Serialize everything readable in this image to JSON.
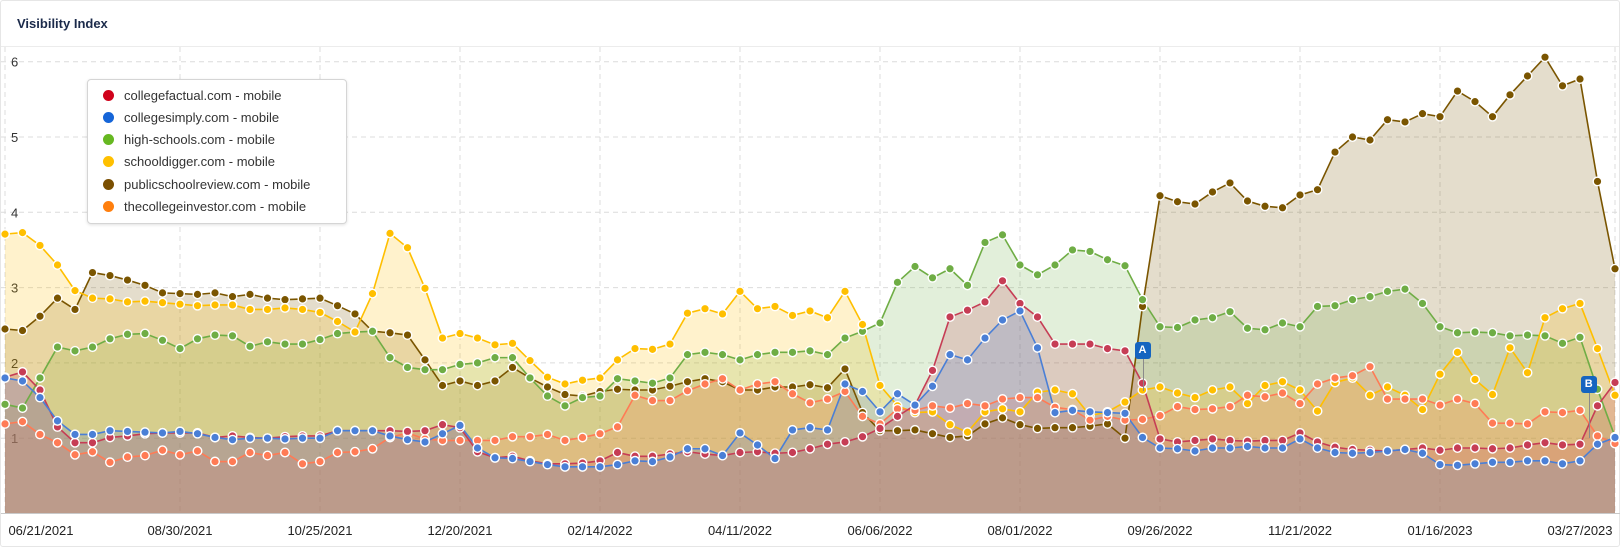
{
  "header": {
    "title": "Visibility Index"
  },
  "chart_data": {
    "type": "area",
    "title": "Visibility Index",
    "xlabel": "",
    "ylabel": "",
    "ylim": [
      0,
      6.3
    ],
    "y_ticks": [
      "1",
      "2",
      "3",
      "4",
      "5",
      "6"
    ],
    "x_start": "06/21/2021",
    "x_interval": "weekly",
    "x_ticks": [
      {
        "label": "06/21/2021",
        "index": 0
      },
      {
        "label": "08/30/2021",
        "index": 10
      },
      {
        "label": "10/25/2021",
        "index": 18
      },
      {
        "label": "12/20/2021",
        "index": 26
      },
      {
        "label": "02/14/2022",
        "index": 34
      },
      {
        "label": "04/11/2022",
        "index": 42
      },
      {
        "label": "06/06/2022",
        "index": 50
      },
      {
        "label": "08/01/2022",
        "index": 58
      },
      {
        "label": "09/26/2022",
        "index": 66
      },
      {
        "label": "11/21/2022",
        "index": 74
      },
      {
        "label": "01/16/2023",
        "index": 82
      },
      {
        "label": "03/27/2023",
        "index": 92
      }
    ],
    "grid": true,
    "legend_position": "top-left",
    "annotations": [
      {
        "label": "A",
        "index": 65
      },
      {
        "label": "B",
        "index": 90.5
      }
    ],
    "series": [
      {
        "name": "publicschoolreview.com - mobile",
        "color": "#7a5500",
        "legend_color": "#7a4f01",
        "values": [
          2.45,
          2.43,
          2.62,
          2.86,
          2.71,
          3.2,
          3.16,
          3.1,
          3.03,
          2.93,
          2.92,
          2.91,
          2.93,
          2.88,
          2.91,
          2.86,
          2.84,
          2.85,
          2.86,
          2.76,
          2.65,
          2.42,
          2.4,
          2.37,
          2.04,
          1.7,
          1.76,
          1.7,
          1.76,
          1.94,
          1.8,
          1.68,
          1.58,
          1.56,
          1.62,
          1.65,
          1.64,
          1.64,
          1.69,
          1.75,
          1.79,
          1.75,
          1.64,
          1.64,
          1.68,
          1.68,
          1.71,
          1.67,
          1.92,
          1.34,
          1.1,
          1.1,
          1.11,
          1.06,
          1.01,
          1.03,
          1.19,
          1.27,
          1.18,
          1.13,
          1.14,
          1.14,
          1.16,
          1.19,
          1.0,
          2.75,
          4.22,
          4.14,
          4.11,
          4.27,
          4.39,
          4.15,
          4.08,
          4.06,
          4.23,
          4.3,
          4.8,
          5.0,
          4.96,
          5.23,
          5.2,
          5.31,
          5.27,
          5.61,
          5.47,
          5.27,
          5.56,
          5.81,
          6.06,
          5.68,
          5.77,
          4.41,
          3.25
        ]
      },
      {
        "name": "high-schools.com - mobile",
        "color": "#6fad45",
        "legend_color": "#66b821",
        "values": [
          1.45,
          1.4,
          1.8,
          2.21,
          2.16,
          2.21,
          2.32,
          2.38,
          2.39,
          2.3,
          2.19,
          2.32,
          2.37,
          2.36,
          2.22,
          2.28,
          2.25,
          2.25,
          2.31,
          2.39,
          2.41,
          2.42,
          2.07,
          1.94,
          1.91,
          1.91,
          1.98,
          2.0,
          2.07,
          2.07,
          1.8,
          1.56,
          1.43,
          1.54,
          1.56,
          1.79,
          1.76,
          1.73,
          1.8,
          2.11,
          2.14,
          2.11,
          2.04,
          2.11,
          2.14,
          2.14,
          2.16,
          2.11,
          2.33,
          2.42,
          2.53,
          3.07,
          3.28,
          3.13,
          3.25,
          3.03,
          3.6,
          3.7,
          3.3,
          3.17,
          3.3,
          3.5,
          3.48,
          3.37,
          3.29,
          2.84,
          2.48,
          2.47,
          2.57,
          2.6,
          2.68,
          2.46,
          2.44,
          2.53,
          2.48,
          2.75,
          2.76,
          2.84,
          2.88,
          2.95,
          2.98,
          2.79,
          2.48,
          2.4,
          2.41,
          2.4,
          2.36,
          2.37,
          2.36,
          2.26,
          2.34,
          1.65,
          1.02
        ]
      },
      {
        "name": "schooldigger.com - mobile",
        "color": "#ffbf00",
        "legend_color": "#ffc000",
        "values": [
          3.71,
          3.73,
          3.56,
          3.3,
          2.96,
          2.86,
          2.85,
          2.81,
          2.82,
          2.8,
          2.78,
          2.76,
          2.77,
          2.77,
          2.71,
          2.71,
          2.73,
          2.71,
          2.67,
          2.55,
          2.41,
          2.92,
          3.72,
          3.53,
          2.99,
          2.33,
          2.39,
          2.33,
          2.24,
          2.26,
          2.03,
          1.81,
          1.72,
          1.77,
          1.8,
          2.04,
          2.19,
          2.18,
          2.25,
          2.66,
          2.72,
          2.65,
          2.95,
          2.72,
          2.75,
          2.63,
          2.69,
          2.6,
          2.95,
          2.51,
          1.7,
          1.43,
          1.34,
          1.35,
          1.18,
          1.08,
          1.35,
          1.39,
          1.35,
          1.61,
          1.64,
          1.59,
          1.3,
          1.35,
          1.48,
          1.64,
          1.68,
          1.6,
          1.54,
          1.64,
          1.68,
          1.46,
          1.7,
          1.75,
          1.64,
          1.36,
          1.74,
          1.8,
          1.57,
          1.68,
          1.57,
          1.38,
          1.85,
          2.14,
          1.78,
          1.58,
          2.2,
          1.87,
          2.6,
          2.72,
          2.79,
          2.19,
          1.57
        ]
      },
      {
        "name": "thecollegeinvestor.com - mobile",
        "color": "#ff7b55",
        "legend_color": "#ff7f0e",
        "values": [
          1.19,
          1.22,
          1.05,
          0.94,
          0.78,
          0.82,
          0.68,
          0.75,
          0.77,
          0.84,
          0.78,
          0.83,
          0.69,
          0.69,
          0.81,
          0.77,
          0.81,
          0.66,
          0.69,
          0.81,
          0.82,
          0.86,
          1.01,
          1.07,
          0.99,
          0.97,
          0.97,
          0.97,
          0.97,
          1.02,
          1.02,
          1.05,
          0.97,
          1.01,
          1.06,
          1.15,
          1.57,
          1.5,
          1.5,
          1.63,
          1.72,
          1.79,
          1.64,
          1.72,
          1.75,
          1.59,
          1.47,
          1.52,
          1.62,
          1.29,
          1.19,
          1.39,
          1.37,
          1.43,
          1.4,
          1.46,
          1.43,
          1.52,
          1.54,
          1.54,
          1.41,
          1.38,
          1.24,
          1.29,
          1.24,
          1.25,
          1.3,
          1.42,
          1.38,
          1.39,
          1.42,
          1.57,
          1.55,
          1.6,
          1.46,
          1.72,
          1.8,
          1.83,
          1.95,
          1.52,
          1.52,
          1.52,
          1.44,
          1.52,
          1.46,
          1.2,
          1.2,
          1.19,
          1.35,
          1.34,
          1.37,
          1.03,
          0.93
        ]
      },
      {
        "name": "collegefactual.com - mobile",
        "color": "#c63d55",
        "legend_color": "#d0021b",
        "values": [
          1.81,
          1.88,
          1.64,
          1.15,
          0.94,
          0.94,
          1.01,
          1.03,
          1.06,
          1.07,
          1.07,
          1.07,
          1.01,
          1.03,
          1.01,
          1.0,
          1.02,
          1.03,
          1.03,
          1.1,
          1.1,
          1.1,
          1.1,
          1.09,
          1.1,
          1.18,
          1.14,
          0.82,
          0.74,
          0.76,
          0.7,
          0.66,
          0.66,
          0.67,
          0.7,
          0.81,
          0.76,
          0.76,
          0.79,
          0.82,
          0.79,
          0.77,
          0.81,
          0.82,
          0.8,
          0.81,
          0.86,
          0.92,
          0.95,
          1.02,
          1.13,
          1.29,
          1.44,
          1.9,
          2.61,
          2.7,
          2.81,
          3.09,
          2.79,
          2.61,
          2.25,
          2.25,
          2.25,
          2.19,
          2.16,
          1.73,
          0.99,
          0.95,
          0.97,
          0.99,
          0.97,
          0.96,
          0.97,
          0.97,
          1.07,
          0.95,
          0.88,
          0.85,
          0.84,
          0.83,
          0.85,
          0.87,
          0.84,
          0.87,
          0.87,
          0.86,
          0.87,
          0.91,
          0.94,
          0.91,
          0.92,
          1.43,
          1.74
        ]
      },
      {
        "name": "collegesimply.com - mobile",
        "color": "#4a7fd6",
        "legend_color": "#1565d8",
        "values": [
          1.8,
          1.76,
          1.54,
          1.23,
          1.05,
          1.05,
          1.1,
          1.09,
          1.08,
          1.07,
          1.09,
          1.06,
          1.01,
          0.98,
          1.0,
          1.0,
          0.99,
          1.0,
          1.0,
          1.1,
          1.1,
          1.1,
          1.03,
          0.98,
          0.95,
          1.06,
          1.17,
          0.87,
          0.74,
          0.73,
          0.69,
          0.65,
          0.62,
          0.62,
          0.62,
          0.65,
          0.7,
          0.69,
          0.75,
          0.86,
          0.86,
          0.77,
          1.07,
          0.91,
          0.73,
          1.11,
          1.14,
          1.11,
          1.72,
          1.62,
          1.35,
          1.59,
          1.44,
          1.69,
          2.11,
          2.04,
          2.33,
          2.57,
          2.69,
          2.2,
          1.34,
          1.37,
          1.35,
          1.34,
          1.33,
          1.01,
          0.87,
          0.86,
          0.83,
          0.87,
          0.87,
          0.89,
          0.87,
          0.87,
          0.99,
          0.87,
          0.81,
          0.8,
          0.81,
          0.83,
          0.85,
          0.8,
          0.65,
          0.64,
          0.66,
          0.68,
          0.68,
          0.7,
          0.7,
          0.66,
          0.7,
          0.92,
          1.01
        ]
      }
    ],
    "legend_order": [
      "collegefactual.com - mobile",
      "collegesimply.com - mobile",
      "high-schools.com - mobile",
      "schooldigger.com - mobile",
      "publicschoolreview.com - mobile",
      "thecollegeinvestor.com - mobile"
    ]
  }
}
